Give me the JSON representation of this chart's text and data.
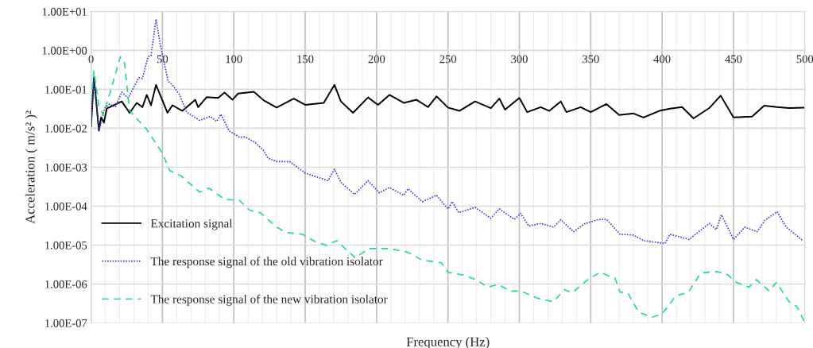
{
  "chart_data": {
    "type": "line",
    "xlabel": "Frequency (Hz)",
    "ylabel": "Acceleration ( m/s² )²",
    "log": "y",
    "xlim": [
      0,
      500
    ],
    "ylim": [
      1e-07,
      10
    ],
    "xticks": [
      0,
      {
        "value": 10,
        "label": null
      },
      {
        "value": 20,
        "label": null
      },
      {
        "value": 30,
        "label": null
      },
      {
        "value": 40,
        "label": null
      },
      50,
      {
        "value": 60,
        "label": null
      },
      {
        "value": 70,
        "label": null
      },
      {
        "value": 80,
        "label": null
      },
      {
        "value": 90,
        "label": null
      },
      100,
      {
        "value": 110,
        "label": null
      },
      {
        "value": 120,
        "label": null
      },
      {
        "value": 130,
        "label": null
      },
      {
        "value": 140,
        "label": null
      },
      150,
      {
        "value": 160,
        "label": null
      },
      {
        "value": 170,
        "label": null
      },
      {
        "value": 180,
        "label": null
      },
      {
        "value": 190,
        "label": null
      },
      200,
      {
        "value": 210,
        "label": null
      },
      {
        "value": 220,
        "label": null
      },
      {
        "value": 230,
        "label": null
      },
      {
        "value": 240,
        "label": null
      },
      250,
      {
        "value": 260,
        "label": null
      },
      {
        "value": 270,
        "label": null
      },
      {
        "value": 280,
        "label": null
      },
      {
        "value": 290,
        "label": null
      },
      300,
      {
        "value": 310,
        "label": null
      },
      {
        "value": 320,
        "label": null
      },
      {
        "value": 330,
        "label": null
      },
      {
        "value": 340,
        "label": null
      },
      350,
      {
        "value": 360,
        "label": null
      },
      {
        "value": 370,
        "label": null
      },
      {
        "value": 380,
        "label": null
      },
      {
        "value": 390,
        "label": null
      },
      400,
      {
        "value": 410,
        "label": null
      },
      {
        "value": 420,
        "label": null
      },
      {
        "value": 430,
        "label": null
      },
      {
        "value": 440,
        "label": null
      },
      450,
      {
        "value": 460,
        "label": null
      },
      {
        "value": 470,
        "label": null
      },
      {
        "value": 480,
        "label": null
      },
      {
        "value": 490,
        "label": null
      },
      500
    ],
    "yticks": [
      {
        "value": 1e-07,
        "label": "1.00E-07"
      },
      {
        "value": 1e-06,
        "label": "1.00E-06"
      },
      {
        "value": 1e-05,
        "label": "1.00E-05"
      },
      {
        "value": 0.0001,
        "label": "1.00E-04"
      },
      {
        "value": 0.001,
        "label": "1.00E-03"
      },
      {
        "value": 0.01,
        "label": "1.00E-02"
      },
      {
        "value": 0.1,
        "label": "1.00E-01"
      },
      {
        "value": 1,
        "label": "1.00E+00"
      },
      {
        "value": 10,
        "label": "1.00E+01"
      }
    ],
    "grid": true,
    "legend": "bottom left",
    "marker": "none",
    "series": [
      {
        "name": "Excitation signal",
        "color": "#000000",
        "line_style": "solid",
        "x": [
          0,
          2,
          5.5,
          7,
          9,
          11,
          21.5,
          27,
          32,
          36,
          39,
          42,
          45.5,
          50,
          53.5,
          57,
          64,
          73,
          75,
          81,
          89,
          93.5,
          99,
          103,
          114,
          121,
          130,
          142,
          150,
          163,
          170.5,
          175,
          183.5,
          194,
          201,
          209,
          219,
          228,
          236,
          242,
          250,
          258,
          269,
          280,
          286,
          290,
          300,
          305.5,
          315,
          321,
          329,
          333,
          343,
          350,
          361,
          370,
          380,
          387,
          398,
          405.5,
          414,
          422,
          433,
          441,
          450,
          463,
          471.5,
          480.5,
          489,
          499.5
        ],
        "values": [
          0.011,
          0.21,
          0.0087,
          0.019,
          0.014,
          0.032,
          0.049,
          0.025,
          0.045,
          0.035,
          0.072,
          0.039,
          0.13,
          0.052,
          0.025,
          0.039,
          0.028,
          0.054,
          0.035,
          0.063,
          0.06,
          0.083,
          0.054,
          0.078,
          0.087,
          0.052,
          0.034,
          0.058,
          0.04,
          0.045,
          0.13,
          0.049,
          0.025,
          0.062,
          0.04,
          0.072,
          0.045,
          0.054,
          0.035,
          0.066,
          0.034,
          0.028,
          0.049,
          0.033,
          0.058,
          0.03,
          0.06,
          0.026,
          0.035,
          0.028,
          0.049,
          0.026,
          0.035,
          0.026,
          0.042,
          0.022,
          0.024,
          0.019,
          0.028,
          0.032,
          0.035,
          0.018,
          0.033,
          0.069,
          0.019,
          0.02,
          0.038,
          0.035,
          0.033,
          0.034
        ]
      },
      {
        "name": "The response signal of the old vibration isolator",
        "color": "#3b3bd6",
        "line_style": "dotted",
        "x": [
          0,
          2,
          5.5,
          9.5,
          13,
          17,
          21.5,
          26,
          33.5,
          36,
          40,
          42,
          45.5,
          48.5,
          54,
          57,
          62,
          67,
          76,
          83.5,
          88,
          91,
          96.5,
          104,
          108,
          115,
          120.5,
          124,
          130,
          139,
          150,
          166,
          170.5,
          175,
          184.5,
          194,
          202,
          209,
          219,
          222,
          232,
          242,
          250,
          253,
          257.5,
          269,
          280,
          286,
          296.5,
          301,
          306.5,
          315,
          324,
          329,
          338,
          345.5,
          355,
          361,
          370.5,
          380,
          387,
          402,
          405.5,
          419,
          433,
          438,
          441.5,
          450,
          458,
          466.5,
          472,
          480.5,
          487,
          498.5
        ],
        "values": [
          0.011,
          0.21,
          0.0087,
          0.033,
          0.042,
          0.035,
          0.085,
          0.06,
          0.2,
          0.19,
          0.69,
          0.74,
          6.3,
          1.4,
          0.16,
          0.13,
          0.072,
          0.026,
          0.016,
          0.02,
          0.015,
          0.023,
          0.0087,
          0.0059,
          0.006,
          0.0043,
          0.0028,
          0.0017,
          0.0014,
          0.0014,
          0.00071,
          0.00045,
          0.00089,
          0.00041,
          0.0002,
          0.00045,
          0.00022,
          0.0003,
          0.00019,
          0.00028,
          0.00013,
          0.00019,
          8.5e-05,
          0.00013,
          6.8e-05,
          9.3e-05,
          4.9e-05,
          8.5e-05,
          4.6e-05,
          6.5e-05,
          3.1e-05,
          3.6e-05,
          2.9e-05,
          4.5e-05,
          2.2e-05,
          3.5e-05,
          4.5e-05,
          4.6e-05,
          1.9e-05,
          1.8e-05,
          1.3e-05,
          1.1e-05,
          1.9e-05,
          1.4e-05,
          3.6e-05,
          2.5e-05,
          6e-05,
          1.4e-05,
          2.9e-05,
          2.2e-05,
          4.3e-05,
          7.2e-05,
          2.9e-05,
          1.3e-05
        ]
      },
      {
        "name": "The response signal of the new vibration isolator",
        "color": "#1ee07a",
        "line_style": "dashed",
        "x": [
          0,
          2,
          5.5,
          8.5,
          14,
          20.5,
          23.5,
          27,
          39,
          50,
          55,
          63,
          76,
          82.5,
          93.5,
          104,
          111,
          118.5,
          130,
          137,
          148,
          157.5,
          165,
          172,
          185,
          194.5,
          209,
          222,
          232,
          245.5,
          250,
          261,
          269.5,
          278,
          285.5,
          293,
          301,
          313,
          324,
          331.5,
          337,
          348,
          356.5,
          367,
          370.5,
          376,
          383.5,
          393,
          400,
          409.5,
          418.5,
          427,
          437,
          444.5,
          452,
          461,
          466,
          475,
          480,
          489,
          494.5,
          499.5
        ],
        "values": [
          0.05,
          0.3,
          0.038,
          0.022,
          0.1,
          0.69,
          0.47,
          0.028,
          0.0093,
          0.0023,
          0.00083,
          0.0006,
          0.00023,
          0.00029,
          0.00015,
          0.00014,
          7.9e-05,
          6.8e-05,
          2.9e-05,
          2.1e-05,
          1.9e-05,
          1.2e-05,
          9.8e-06,
          1.3e-05,
          4.7e-06,
          8.1e-06,
          8.1e-06,
          6.5e-06,
          4.1e-06,
          3.5e-06,
          2e-06,
          1.7e-06,
          1.3e-06,
          8.3e-07,
          9.8e-07,
          6.6e-07,
          6.6e-07,
          4.3e-07,
          3.5e-07,
          7.2e-07,
          5.9e-07,
          1.3e-06,
          2e-06,
          1.4e-06,
          6.2e-07,
          5.9e-07,
          1.9e-07,
          1.4e-07,
          1.7e-07,
          4.9e-07,
          6.2e-07,
          1.9e-06,
          2.1e-06,
          1.9e-06,
          1.1e-06,
          8.3e-07,
          1.3e-06,
          6.6e-07,
          1.1e-06,
          3.5e-07,
          2.6e-07,
          1.1e-07
        ]
      }
    ]
  }
}
